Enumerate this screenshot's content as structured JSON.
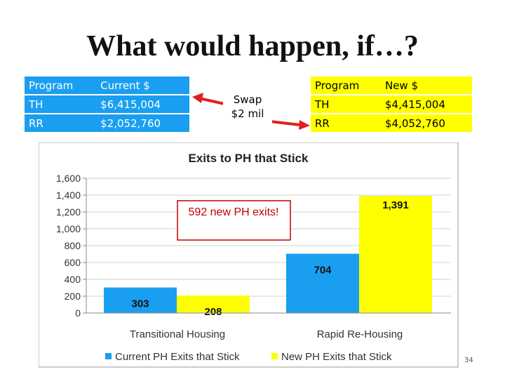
{
  "slide": {
    "title": "What would happen, if…?",
    "swap_label": [
      "Swap",
      "$2 mil"
    ],
    "slide_number": "34",
    "colors": {
      "current": "#1a9ff0",
      "new": "#ffff00",
      "arrow": "#e02020",
      "callout_border": "#c00000"
    }
  },
  "current_table": {
    "headers": [
      "Program",
      "Current $"
    ],
    "rows": [
      [
        "TH",
        "$6,415,004"
      ],
      [
        "RR",
        "$2,052,760"
      ]
    ]
  },
  "new_table": {
    "headers": [
      "Program",
      "New $"
    ],
    "rows": [
      [
        "TH",
        "$4,415,004"
      ],
      [
        "RR",
        "$4,052,760"
      ]
    ]
  },
  "chart_data": {
    "type": "bar",
    "title": "Exits to PH that Stick",
    "categories": [
      "Transitional Housing",
      "Rapid Re-Housing"
    ],
    "series": [
      {
        "name": "Current PH Exits that Stick",
        "values": [
          303,
          704
        ],
        "color": "#1a9ff0"
      },
      {
        "name": "New PH Exits that Stick",
        "values": [
          208,
          1391
        ],
        "color": "#ffff00"
      }
    ],
    "data_labels": [
      "303",
      "208",
      "704",
      "1,391"
    ],
    "ylim": [
      0,
      1600
    ],
    "yticks": [
      0,
      200,
      400,
      600,
      800,
      1000,
      1200,
      1400,
      1600
    ],
    "ytick_labels": [
      "0",
      "200",
      "400",
      "600",
      "800",
      "1,000",
      "1,200",
      "1,400",
      "1,600"
    ],
    "grid": true,
    "legend_position": "bottom",
    "annotation": "592 new PH exits!"
  }
}
